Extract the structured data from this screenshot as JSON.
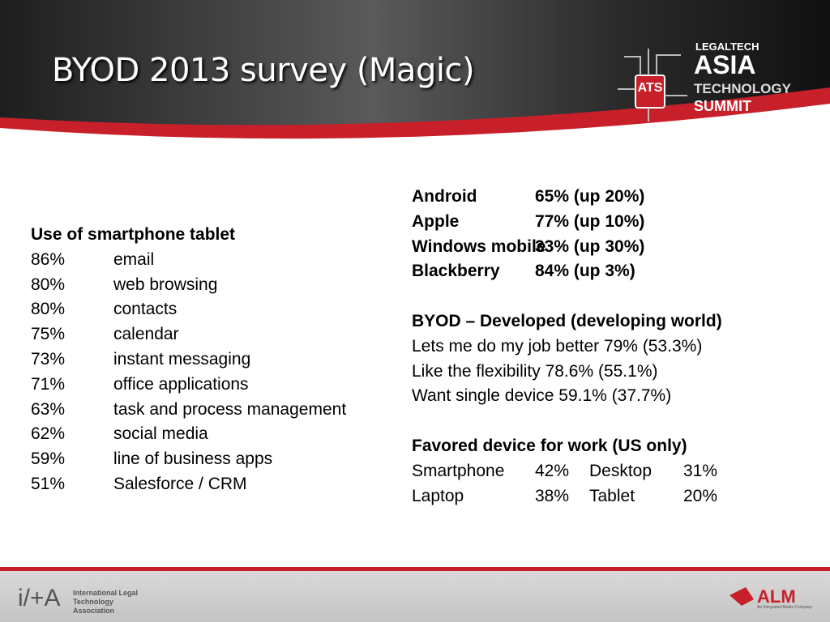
{
  "header": {
    "title": "BYOD 2013 survey (Magic)",
    "logo": {
      "mark": "ATS",
      "line1": "LEGALTECH",
      "line2": "ASIA",
      "line3": "TECHNOLOGY",
      "line4": "SUMMIT"
    }
  },
  "left": {
    "heading": "Use of smartphone tablet",
    "rows": [
      [
        "86%",
        "email"
      ],
      [
        "80%",
        "web browsing"
      ],
      [
        "80%",
        "contacts"
      ],
      [
        "75%",
        "calendar"
      ],
      [
        "73%",
        "instant messaging"
      ],
      [
        "71%",
        "office applications"
      ],
      [
        "63%",
        "task and process management"
      ],
      [
        "62%",
        "social media"
      ],
      [
        "59%",
        "line of business apps"
      ],
      [
        "51%",
        "Salesforce / CRM"
      ]
    ]
  },
  "right": {
    "platforms": [
      [
        "Android",
        "65% (up 20%)"
      ],
      [
        "Apple",
        "77% (up 10%)"
      ],
      [
        "Windows mobile",
        "33% (up 30%)"
      ],
      [
        "Blackberry",
        "84% (up 3%)"
      ]
    ],
    "byod_heading": "BYOD – Developed (developing world)",
    "byod_lines": [
      "Lets me do my job better 79% (53.3%)",
      "Like the flexibility 78.6% (55.1%)",
      "Want single device 59.1% (37.7%)"
    ],
    "favored_heading": "Favored device for work (US only)",
    "favored_rows": [
      [
        "Smartphone",
        "42%",
        "Desktop",
        "31%"
      ],
      [
        "Laptop",
        "38%",
        "Tablet",
        "20%"
      ]
    ]
  },
  "footer": {
    "ilta_mark": "i/+A",
    "ilta_name": "International Legal Technology Association",
    "alm": "ALM",
    "alm_tagline": "An Integrated Media Company"
  }
}
